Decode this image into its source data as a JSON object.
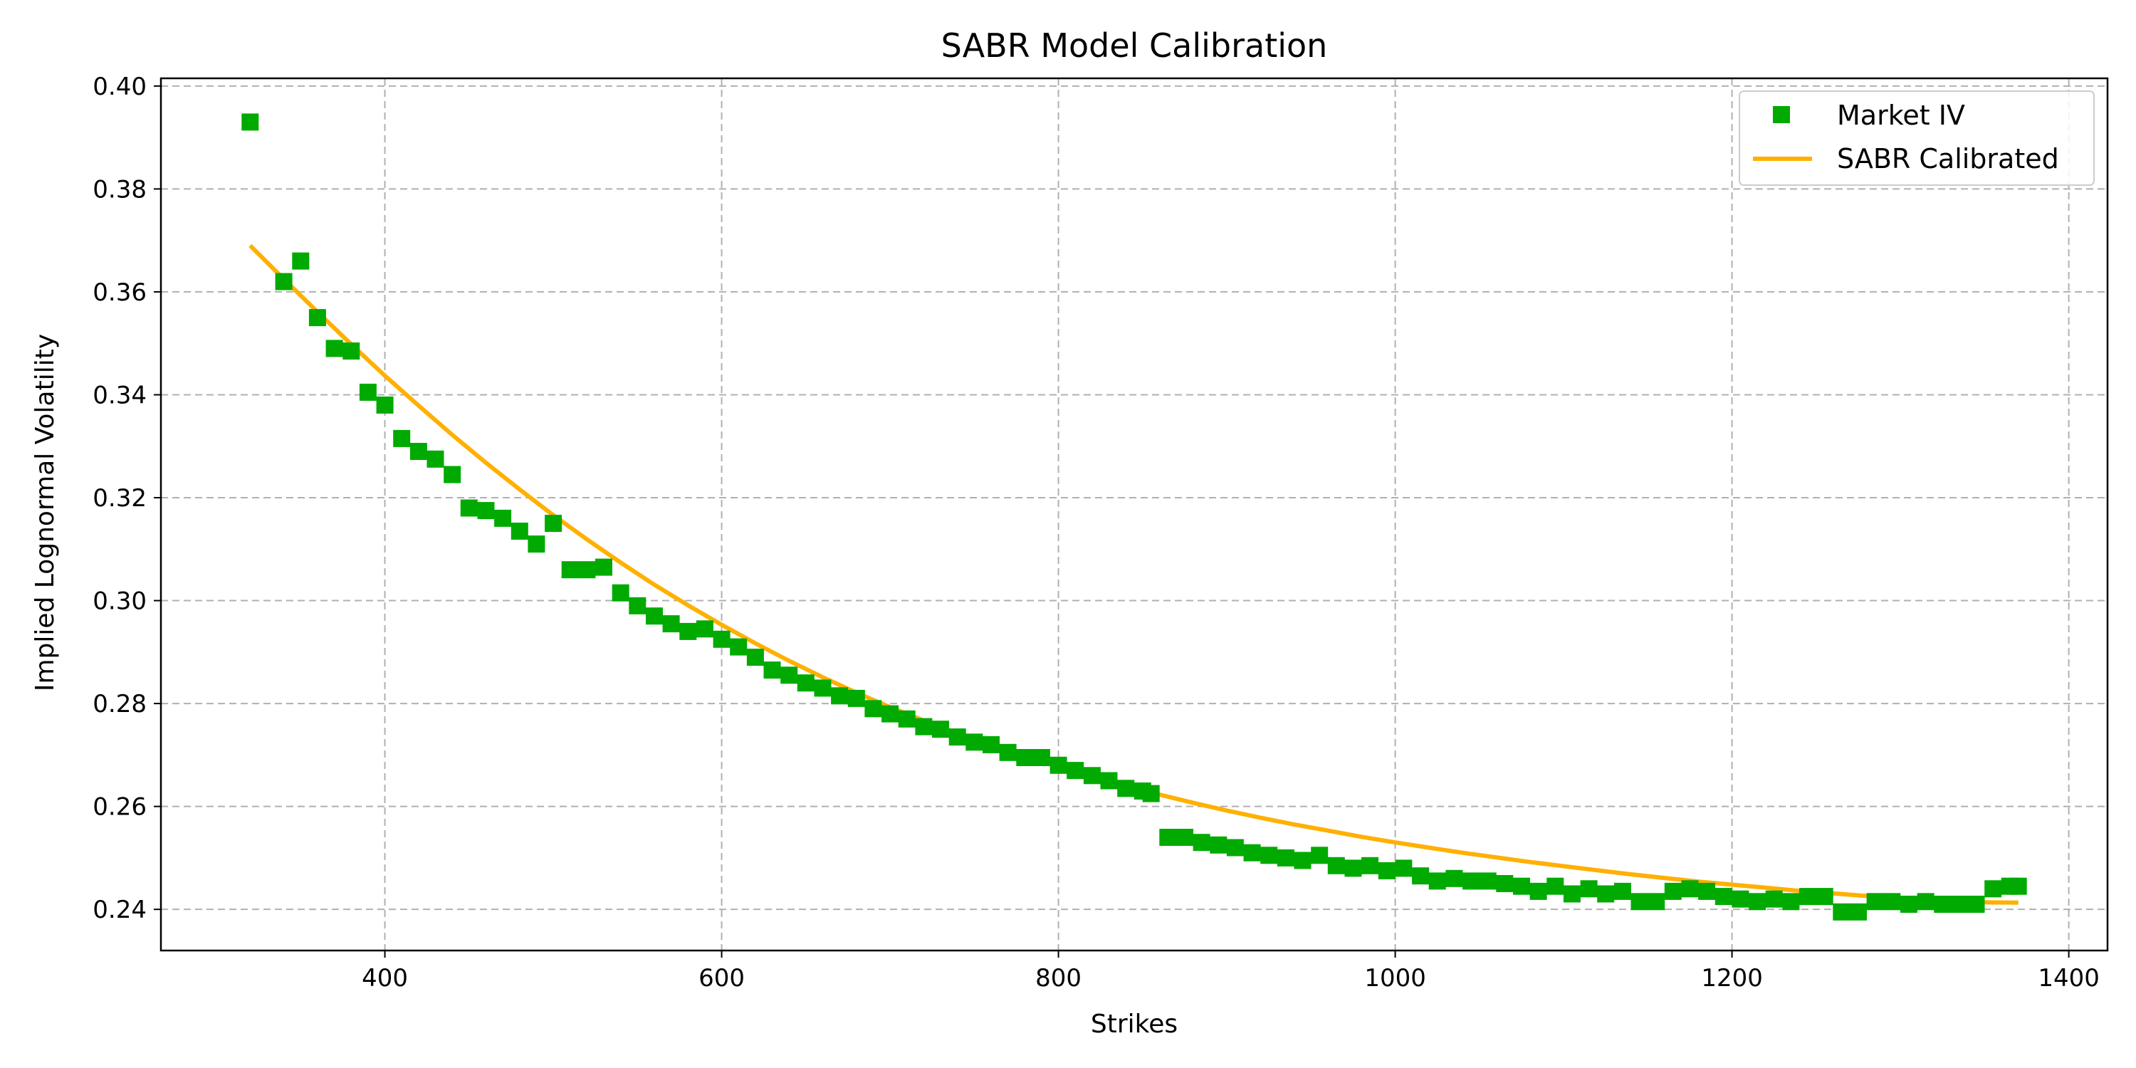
{
  "chart_data": {
    "type": "scatter",
    "title": "SABR Model Calibration",
    "xlabel": "Strikes",
    "ylabel": "Implied Lognormal Volatility",
    "xlim": [
      267,
      1423
    ],
    "ylim": [
      0.232,
      0.4015
    ],
    "xticks": [
      400,
      600,
      800,
      1000,
      1200,
      1400
    ],
    "yticks": [
      0.24,
      0.26,
      0.28,
      0.3,
      0.32,
      0.34,
      0.36,
      0.38,
      0.4
    ],
    "xtick_labels": [
      "400",
      "600",
      "800",
      "1000",
      "1200",
      "1400"
    ],
    "ytick_labels": [
      "0.24",
      "0.26",
      "0.28",
      "0.30",
      "0.32",
      "0.34",
      "0.36",
      "0.38",
      "0.40"
    ],
    "grid": true,
    "legend_position": "top-right",
    "series": [
      {
        "name": "Market IV",
        "kind": "markers",
        "marker": "square",
        "color": "#00aa00",
        "x": [
          320,
          340,
          350,
          360,
          370,
          380,
          390,
          400,
          410,
          420,
          430,
          440,
          450,
          460,
          470,
          480,
          490,
          500,
          510,
          520,
          530,
          540,
          550,
          560,
          570,
          580,
          590,
          600,
          610,
          620,
          630,
          640,
          650,
          660,
          670,
          680,
          690,
          700,
          710,
          720,
          730,
          740,
          750,
          760,
          770,
          780,
          790,
          800,
          810,
          820,
          830,
          840,
          850,
          855,
          865,
          875,
          885,
          895,
          905,
          915,
          925,
          935,
          945,
          955,
          965,
          975,
          985,
          995,
          1005,
          1015,
          1025,
          1035,
          1045,
          1055,
          1065,
          1075,
          1085,
          1095,
          1105,
          1115,
          1125,
          1135,
          1145,
          1155,
          1165,
          1175,
          1185,
          1195,
          1205,
          1215,
          1225,
          1235,
          1245,
          1255,
          1265,
          1275,
          1285,
          1295,
          1305,
          1315,
          1325,
          1335,
          1345,
          1355,
          1365,
          1370
        ],
        "y": [
          0.393,
          0.362,
          0.366,
          0.355,
          0.349,
          0.3485,
          0.3405,
          0.338,
          0.3315,
          0.329,
          0.3275,
          0.3245,
          0.318,
          0.3175,
          0.316,
          0.3135,
          0.311,
          0.315,
          0.306,
          0.306,
          0.3065,
          0.3015,
          0.299,
          0.297,
          0.2955,
          0.294,
          0.2945,
          0.2925,
          0.291,
          0.289,
          0.2865,
          0.2855,
          0.284,
          0.283,
          0.2815,
          0.281,
          0.279,
          0.278,
          0.277,
          0.2755,
          0.275,
          0.2735,
          0.2725,
          0.272,
          0.2705,
          0.2695,
          0.2695,
          0.268,
          0.267,
          0.266,
          0.265,
          0.2635,
          0.263,
          0.2625,
          0.254,
          0.254,
          0.253,
          0.2525,
          0.252,
          0.251,
          0.2505,
          0.25,
          0.2495,
          0.2505,
          0.2485,
          0.248,
          0.2485,
          0.2475,
          0.248,
          0.2465,
          0.2455,
          0.246,
          0.2455,
          0.2455,
          0.245,
          0.2445,
          0.2435,
          0.2445,
          0.243,
          0.244,
          0.243,
          0.2435,
          0.2415,
          0.2415,
          0.2435,
          0.244,
          0.2435,
          0.2425,
          0.242,
          0.2415,
          0.242,
          0.2415,
          0.2425,
          0.2425,
          0.2395,
          0.2395,
          0.2415,
          0.2415,
          0.241,
          0.2415,
          0.241,
          0.241,
          0.241,
          0.244,
          0.2445,
          0.2445
        ]
      },
      {
        "name": "SABR Calibrated",
        "kind": "line",
        "color": "#ffb000",
        "x": [
          320,
          340,
          360,
          380,
          400,
          420,
          440,
          460,
          480,
          500,
          520,
          540,
          560,
          580,
          600,
          620,
          640,
          660,
          680,
          700,
          720,
          740,
          760,
          780,
          800,
          820,
          840,
          860,
          880,
          900,
          920,
          940,
          960,
          980,
          1000,
          1020,
          1040,
          1060,
          1080,
          1100,
          1120,
          1140,
          1160,
          1180,
          1200,
          1220,
          1240,
          1260,
          1280,
          1300,
          1320,
          1340,
          1370
        ],
        "y": [
          0.369,
          0.3625,
          0.3561,
          0.3498,
          0.3437,
          0.3379,
          0.3322,
          0.3268,
          0.3216,
          0.3166,
          0.3119,
          0.3074,
          0.3031,
          0.2991,
          0.2953,
          0.2917,
          0.2883,
          0.2851,
          0.2821,
          0.2793,
          0.2767,
          0.2742,
          0.2719,
          0.2697,
          0.2677,
          0.2658,
          0.264,
          0.2623,
          0.2607,
          0.2592,
          0.2578,
          0.2565,
          0.2553,
          0.2541,
          0.253,
          0.252,
          0.251,
          0.2501,
          0.2492,
          0.2484,
          0.2476,
          0.2468,
          0.2461,
          0.2454,
          0.2448,
          0.2442,
          0.2436,
          0.2431,
          0.2426,
          0.2421,
          0.2417,
          0.2414,
          0.2413
        ]
      }
    ]
  }
}
